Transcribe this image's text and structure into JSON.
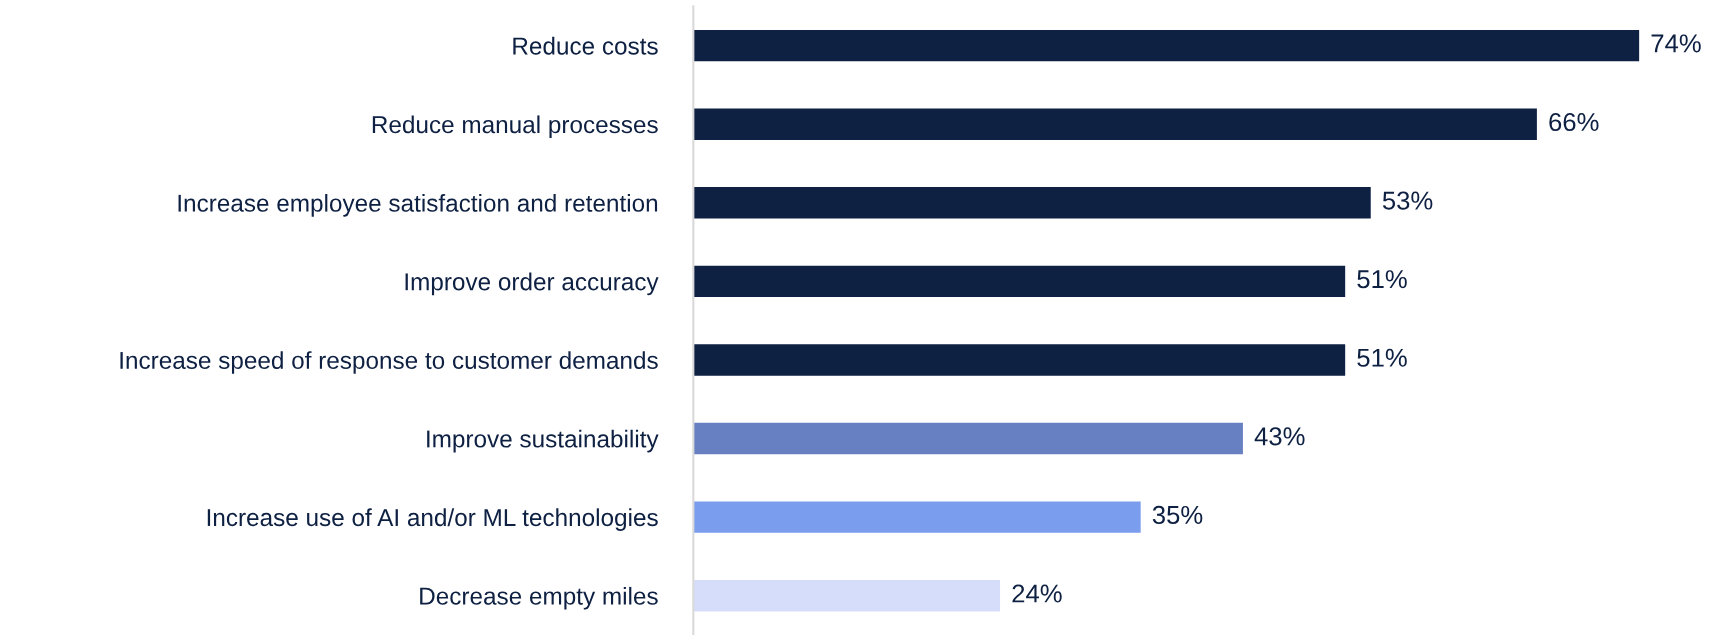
{
  "chart_data": {
    "type": "bar",
    "orientation": "horizontal",
    "categories": [
      "Reduce costs",
      "Reduce manual processes",
      "Increase employee satisfaction and retention",
      "Improve order accuracy",
      "Increase speed of response to customer demands",
      "Improve sustainability",
      "Increase use of AI and/or ML technologies",
      "Decrease empty miles"
    ],
    "values": [
      74,
      66,
      53,
      51,
      51,
      43,
      35,
      24
    ],
    "colors": [
      "#0f2143",
      "#0f2143",
      "#0f2143",
      "#0f2143",
      "#0f2143",
      "#6780c2",
      "#7b9dee",
      "#d5ddfb"
    ],
    "value_labels": [
      "74%",
      "66%",
      "53%",
      "51%",
      "51%",
      "43%",
      "35%",
      "24%"
    ],
    "grid": false,
    "legend": false
  }
}
